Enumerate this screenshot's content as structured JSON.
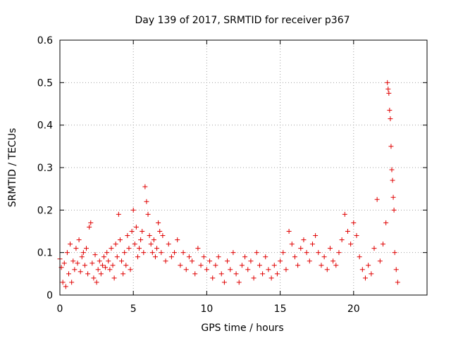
{
  "chart_data": {
    "type": "scatter",
    "title": "Day 139 of 2017, SRMTID for receiver p367",
    "xlabel": "GPS time / hours",
    "ylabel": "SRMTID / TECUs",
    "xlim": [
      0,
      25
    ],
    "ylim": [
      0,
      0.6
    ],
    "xticks": [
      0,
      5,
      10,
      15,
      20
    ],
    "yticks": [
      0,
      0.1,
      0.2,
      0.3,
      0.4,
      0.5,
      0.6
    ],
    "grid": true,
    "marker": "plus",
    "marker_color": "#e00000",
    "series": [
      {
        "name": "SRMTID",
        "points": [
          [
            0.0,
            0.085
          ],
          [
            0.1,
            0.065
          ],
          [
            0.2,
            0.03
          ],
          [
            0.3,
            0.075
          ],
          [
            0.4,
            0.02
          ],
          [
            0.5,
            0.1
          ],
          [
            0.6,
            0.05
          ],
          [
            0.7,
            0.12
          ],
          [
            0.8,
            0.03
          ],
          [
            0.9,
            0.08
          ],
          [
            1.0,
            0.06
          ],
          [
            1.1,
            0.11
          ],
          [
            1.2,
            0.075
          ],
          [
            1.3,
            0.13
          ],
          [
            1.4,
            0.055
          ],
          [
            1.5,
            0.09
          ],
          [
            1.6,
            0.1
          ],
          [
            1.7,
            0.07
          ],
          [
            1.8,
            0.11
          ],
          [
            1.9,
            0.05
          ],
          [
            2.0,
            0.16
          ],
          [
            2.1,
            0.17
          ],
          [
            2.2,
            0.075
          ],
          [
            2.3,
            0.04
          ],
          [
            2.4,
            0.095
          ],
          [
            2.5,
            0.03
          ],
          [
            2.6,
            0.06
          ],
          [
            2.7,
            0.08
          ],
          [
            2.8,
            0.05
          ],
          [
            2.9,
            0.07
          ],
          [
            3.0,
            0.09
          ],
          [
            3.1,
            0.065
          ],
          [
            3.2,
            0.1
          ],
          [
            3.3,
            0.08
          ],
          [
            3.4,
            0.06
          ],
          [
            3.5,
            0.11
          ],
          [
            3.6,
            0.07
          ],
          [
            3.7,
            0.04
          ],
          [
            3.8,
            0.12
          ],
          [
            3.9,
            0.09
          ],
          [
            4.0,
            0.19
          ],
          [
            4.1,
            0.13
          ],
          [
            4.2,
            0.08
          ],
          [
            4.3,
            0.05
          ],
          [
            4.4,
            0.1
          ],
          [
            4.5,
            0.07
          ],
          [
            4.6,
            0.14
          ],
          [
            4.7,
            0.11
          ],
          [
            4.8,
            0.06
          ],
          [
            4.9,
            0.15
          ],
          [
            5.0,
            0.2
          ],
          [
            5.1,
            0.12
          ],
          [
            5.2,
            0.16
          ],
          [
            5.3,
            0.09
          ],
          [
            5.4,
            0.11
          ],
          [
            5.5,
            0.13
          ],
          [
            5.6,
            0.15
          ],
          [
            5.7,
            0.1
          ],
          [
            5.8,
            0.255
          ],
          [
            5.9,
            0.22
          ],
          [
            6.0,
            0.19
          ],
          [
            6.1,
            0.14
          ],
          [
            6.2,
            0.12
          ],
          [
            6.3,
            0.1
          ],
          [
            6.4,
            0.13
          ],
          [
            6.5,
            0.09
          ],
          [
            6.6,
            0.11
          ],
          [
            6.7,
            0.17
          ],
          [
            6.8,
            0.15
          ],
          [
            6.9,
            0.1
          ],
          [
            7.0,
            0.14
          ],
          [
            7.2,
            0.08
          ],
          [
            7.4,
            0.12
          ],
          [
            7.6,
            0.09
          ],
          [
            7.8,
            0.1
          ],
          [
            8.0,
            0.13
          ],
          [
            8.2,
            0.07
          ],
          [
            8.4,
            0.1
          ],
          [
            8.6,
            0.06
          ],
          [
            8.8,
            0.09
          ],
          [
            9.0,
            0.08
          ],
          [
            9.2,
            0.05
          ],
          [
            9.4,
            0.11
          ],
          [
            9.6,
            0.07
          ],
          [
            9.8,
            0.09
          ],
          [
            10.0,
            0.06
          ],
          [
            10.2,
            0.08
          ],
          [
            10.4,
            0.04
          ],
          [
            10.6,
            0.07
          ],
          [
            10.8,
            0.09
          ],
          [
            11.0,
            0.05
          ],
          [
            11.2,
            0.03
          ],
          [
            11.4,
            0.08
          ],
          [
            11.6,
            0.06
          ],
          [
            11.8,
            0.1
          ],
          [
            12.0,
            0.05
          ],
          [
            12.2,
            0.03
          ],
          [
            12.4,
            0.07
          ],
          [
            12.6,
            0.09
          ],
          [
            12.8,
            0.06
          ],
          [
            13.0,
            0.08
          ],
          [
            13.2,
            0.04
          ],
          [
            13.4,
            0.1
          ],
          [
            13.6,
            0.07
          ],
          [
            13.8,
            0.05
          ],
          [
            14.0,
            0.09
          ],
          [
            14.2,
            0.06
          ],
          [
            14.4,
            0.04
          ],
          [
            14.6,
            0.07
          ],
          [
            14.8,
            0.05
          ],
          [
            15.0,
            0.08
          ],
          [
            15.2,
            0.1
          ],
          [
            15.4,
            0.06
          ],
          [
            15.6,
            0.15
          ],
          [
            15.8,
            0.12
          ],
          [
            16.0,
            0.09
          ],
          [
            16.2,
            0.07
          ],
          [
            16.4,
            0.11
          ],
          [
            16.6,
            0.13
          ],
          [
            16.8,
            0.1
          ],
          [
            17.0,
            0.08
          ],
          [
            17.2,
            0.12
          ],
          [
            17.4,
            0.14
          ],
          [
            17.6,
            0.1
          ],
          [
            17.8,
            0.07
          ],
          [
            18.0,
            0.09
          ],
          [
            18.2,
            0.06
          ],
          [
            18.4,
            0.11
          ],
          [
            18.6,
            0.08
          ],
          [
            18.8,
            0.07
          ],
          [
            19.0,
            0.1
          ],
          [
            19.2,
            0.13
          ],
          [
            19.4,
            0.19
          ],
          [
            19.6,
            0.15
          ],
          [
            19.8,
            0.12
          ],
          [
            20.0,
            0.17
          ],
          [
            20.2,
            0.14
          ],
          [
            20.4,
            0.09
          ],
          [
            20.6,
            0.06
          ],
          [
            20.8,
            0.04
          ],
          [
            21.0,
            0.07
          ],
          [
            21.2,
            0.05
          ],
          [
            21.4,
            0.11
          ],
          [
            21.6,
            0.225
          ],
          [
            21.8,
            0.08
          ],
          [
            22.0,
            0.12
          ],
          [
            22.2,
            0.17
          ],
          [
            22.3,
            0.5
          ],
          [
            22.35,
            0.485
          ],
          [
            22.4,
            0.475
          ],
          [
            22.45,
            0.435
          ],
          [
            22.5,
            0.415
          ],
          [
            22.55,
            0.35
          ],
          [
            22.6,
            0.295
          ],
          [
            22.65,
            0.27
          ],
          [
            22.7,
            0.23
          ],
          [
            22.75,
            0.2
          ],
          [
            22.8,
            0.1
          ],
          [
            22.9,
            0.06
          ],
          [
            23.0,
            0.03
          ]
        ]
      }
    ]
  }
}
